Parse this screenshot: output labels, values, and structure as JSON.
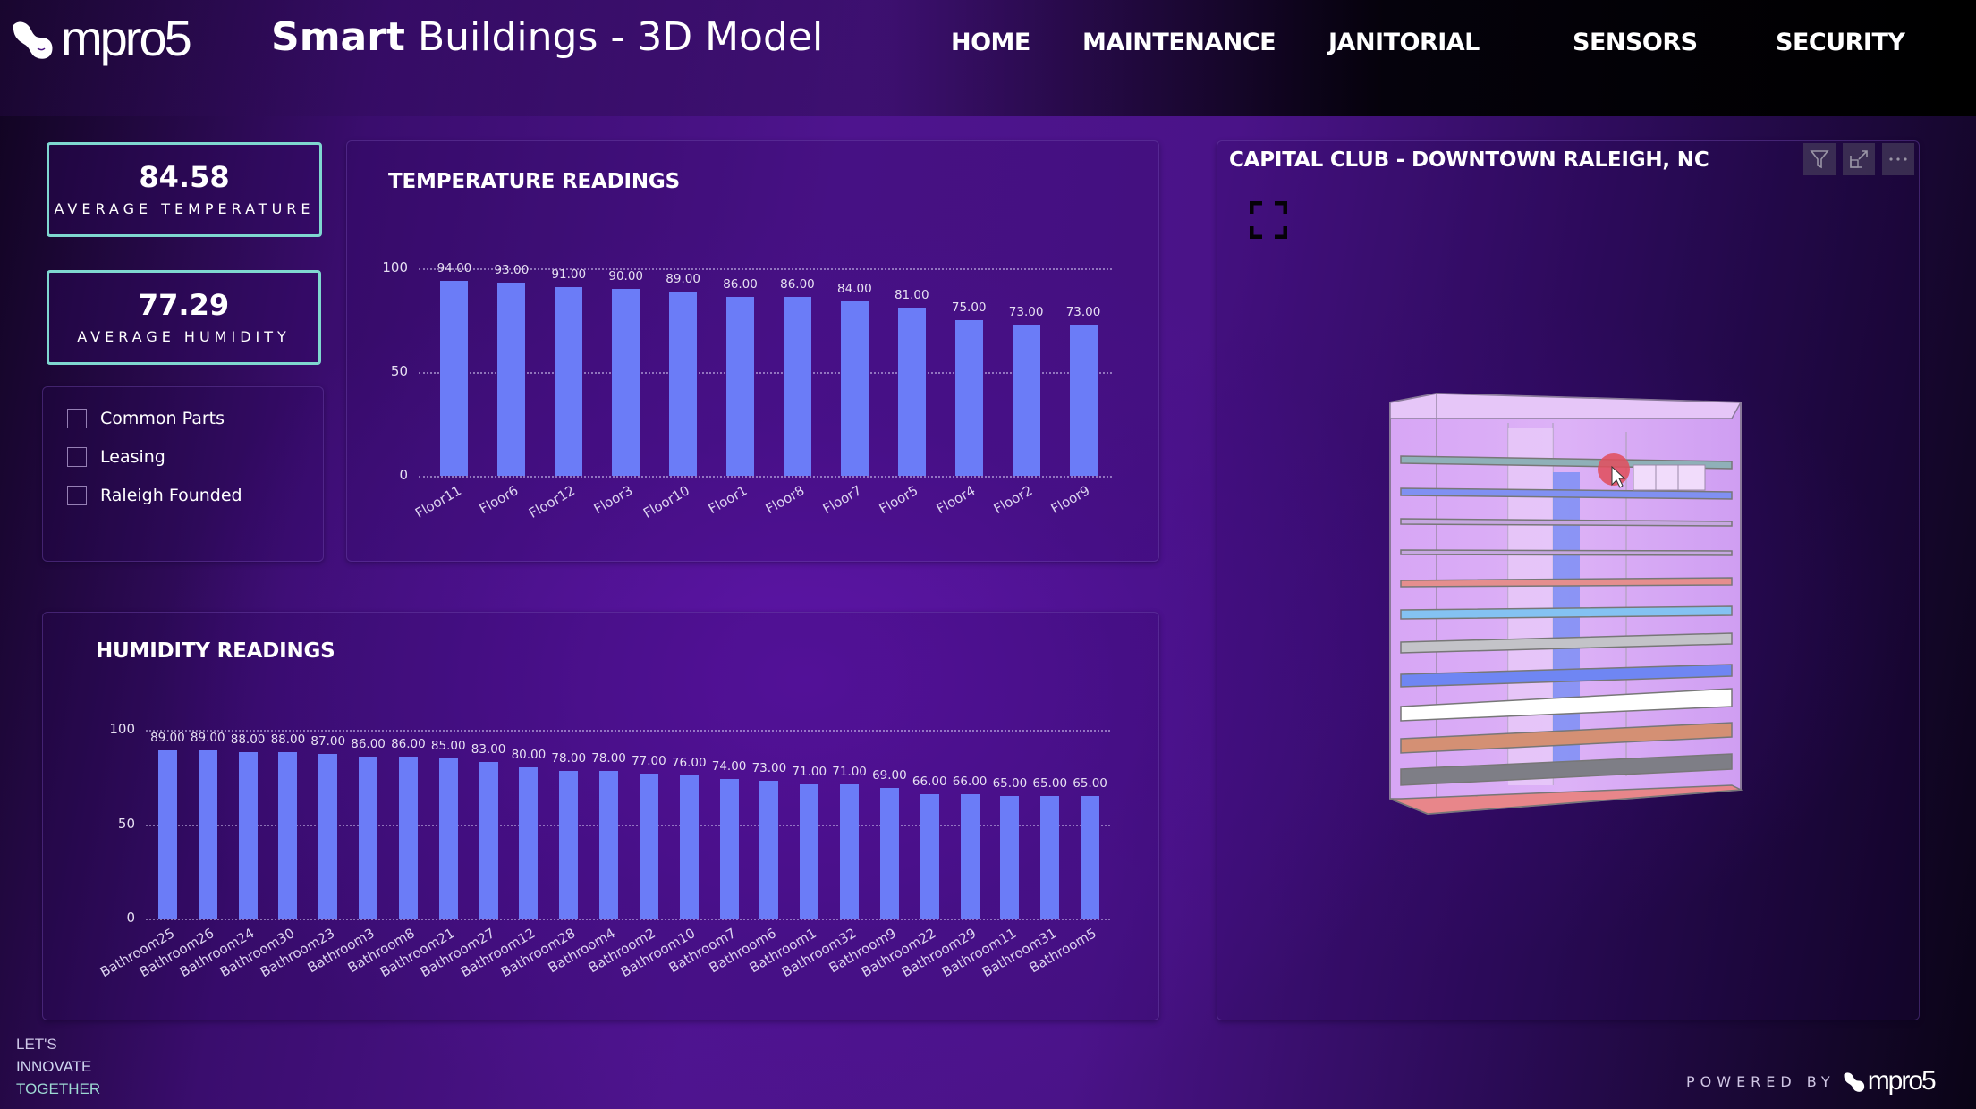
{
  "header": {
    "logo_text": "mpro5",
    "title_bold": "Smart",
    "title_rest": "Buildings - 3D Model",
    "nav": [
      {
        "label": "HOME"
      },
      {
        "label": "MAINTENANCE"
      },
      {
        "label": "JANITORIAL"
      },
      {
        "label": "SENSORS"
      },
      {
        "label": "SECURITY"
      }
    ]
  },
  "kpis": {
    "temperature": {
      "value": "84.58",
      "label": "AVERAGE TEMPERATURE"
    },
    "humidity": {
      "value": "77.29",
      "label": "AVERAGE HUMIDITY"
    }
  },
  "slicer": {
    "items": [
      {
        "label": "Common Parts",
        "checked": false
      },
      {
        "label": "Leasing",
        "checked": false
      },
      {
        "label": "Raleigh Founded",
        "checked": false
      }
    ]
  },
  "model_panel": {
    "title": "CAPITAL CLUB - DOWNTOWN RALEIGH, NC",
    "icons": [
      "filter-icon",
      "focus-mode-icon",
      "more-options-icon"
    ],
    "fullscreen_icon": "expand-icon"
  },
  "footer": {
    "tagline": [
      "LET'S",
      "INNOVATE",
      "TOGETHER"
    ],
    "powered_by": "POWERED BY",
    "powered_logo": "mpro5"
  },
  "colors": {
    "bar": "#6b7cf7",
    "kpi_border": "#7fd7d0",
    "background": "#4a1382"
  },
  "chart_data": [
    {
      "type": "bar",
      "title": "TEMPERATURE READINGS",
      "categories": [
        "Floor11",
        "Floor6",
        "Floor12",
        "Floor3",
        "Floor10",
        "Floor1",
        "Floor8",
        "Floor7",
        "Floor5",
        "Floor4",
        "Floor2",
        "Floor9"
      ],
      "values": [
        94.0,
        93.0,
        91.0,
        90.0,
        89.0,
        86.0,
        86.0,
        84.0,
        81.0,
        75.0,
        73.0,
        73.0
      ],
      "value_labels": [
        "94.00",
        "93.00",
        "91.00",
        "90.00",
        "89.00",
        "86.00",
        "86.00",
        "84.00",
        "81.00",
        "75.00",
        "73.00",
        "73.00"
      ],
      "xlabel": "",
      "ylabel": "",
      "yticks": [
        0,
        50,
        100
      ],
      "ylim": [
        0,
        100
      ],
      "grid": "dotted"
    },
    {
      "type": "bar",
      "title": "HUMIDITY READINGS",
      "categories": [
        "Bathroom25",
        "Bathroom26",
        "Bathroom24",
        "Bathroom30",
        "Bathroom23",
        "Bathroom3",
        "Bathroom8",
        "Bathroom21",
        "Bathroom27",
        "Bathroom12",
        "Bathroom28",
        "Bathroom4",
        "Bathroom2",
        "Bathroom10",
        "Bathroom7",
        "Bathroom6",
        "Bathroom1",
        "Bathroom32",
        "Bathroom9",
        "Bathroom22",
        "Bathroom29",
        "Bathroom11",
        "Bathroom31",
        "Bathroom5"
      ],
      "values": [
        89.0,
        89.0,
        88.0,
        88.0,
        87.0,
        86.0,
        86.0,
        85.0,
        83.0,
        80.0,
        78.0,
        78.0,
        77.0,
        76.0,
        74.0,
        73.0,
        71.0,
        71.0,
        69.0,
        66.0,
        66.0,
        65.0,
        65.0,
        65.0
      ],
      "value_labels": [
        "89.00",
        "89.00",
        "88.00",
        "88.00",
        "87.00",
        "86.00",
        "86.00",
        "85.00",
        "83.00",
        "80.00",
        "78.00",
        "78.00",
        "77.00",
        "76.00",
        "74.00",
        "73.00",
        "71.00",
        "71.00",
        "69.00",
        "66.00",
        "66.00",
        "65.00",
        "65.00",
        "65.00"
      ],
      "xlabel": "",
      "ylabel": "",
      "yticks": [
        0,
        50,
        100
      ],
      "ylim": [
        0,
        100
      ],
      "grid": "dotted"
    }
  ]
}
